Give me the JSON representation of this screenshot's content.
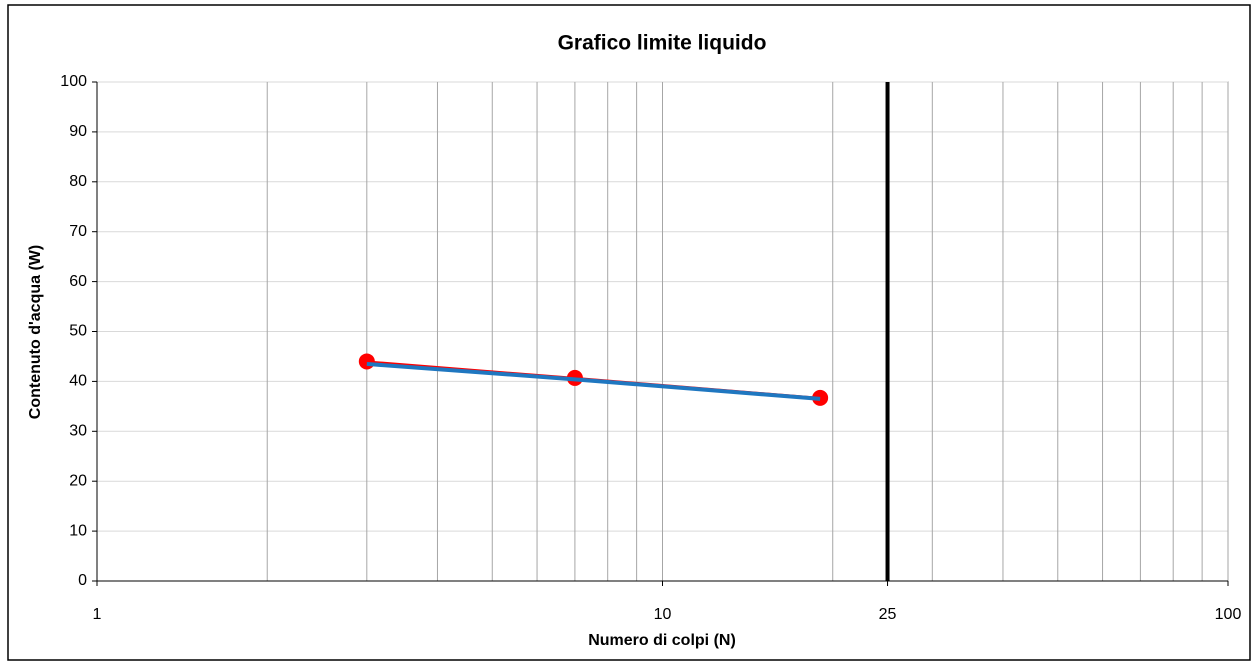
{
  "chart_data": {
    "type": "line",
    "title": "Grafico limite liquido",
    "xlabel": "Numero di colpi (N)",
    "ylabel": "Contenuto d'acqua (W)",
    "x": [
      3,
      7,
      19
    ],
    "series": [
      {
        "color": "#ff0000",
        "values": [
          44,
          40.7,
          36.7
        ],
        "markers": true,
        "line_width": 2
      },
      {
        "color": "#1f77c0",
        "values": [
          43.5,
          40.4,
          36.5
        ],
        "markers": false,
        "line_width": 4
      }
    ],
    "xlog": true,
    "xlim": [
      1,
      100
    ],
    "xticks": [
      1,
      10,
      25,
      100
    ],
    "x_minor_grid": [
      2,
      3,
      4,
      5,
      6,
      7,
      8,
      9,
      20,
      30,
      40,
      50,
      60,
      70,
      80,
      90
    ],
    "ylim": [
      0,
      100
    ],
    "yticks": [
      0,
      10,
      20,
      30,
      40,
      50,
      60,
      70,
      80,
      90,
      100
    ],
    "grid": true,
    "reference_line": {
      "x": 25,
      "color": "#000000"
    }
  }
}
